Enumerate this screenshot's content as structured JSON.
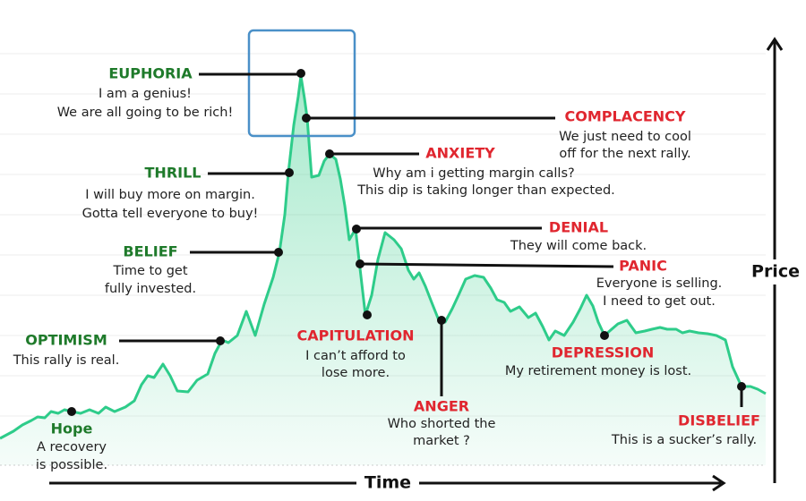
{
  "axes": {
    "x": "Time",
    "y": "Price"
  },
  "stages": [
    {
      "name": "Hope",
      "text": [
        "A recovery",
        "is possible."
      ]
    },
    {
      "name": "OPTIMISM",
      "text": [
        "This rally is real."
      ]
    },
    {
      "name": "BELIEF",
      "text": [
        "Time to get",
        "fully invested."
      ]
    },
    {
      "name": "THRILL",
      "text": [
        "I will buy more on margin.",
        "Gotta tell everyone to buy!"
      ]
    },
    {
      "name": "EUPHORIA",
      "text": [
        "I am a genius!",
        "We are all going to be rich!"
      ]
    },
    {
      "name": "COMPLACENCY",
      "text": [
        "We just need to cool",
        "off for the next rally."
      ]
    },
    {
      "name": "ANXIETY",
      "text": [
        "Why am i getting margin calls?",
        "This dip is taking longer than expected."
      ]
    },
    {
      "name": "DENIAL",
      "text": [
        "They will come back."
      ]
    },
    {
      "name": "PANIC",
      "text": [
        "Everyone is selling.",
        "I need to get out."
      ]
    },
    {
      "name": "CAPITULATION",
      "text": [
        "I can’t afford to",
        "lose more."
      ]
    },
    {
      "name": "ANGER",
      "text": [
        "Who shorted the",
        "market ?"
      ]
    },
    {
      "name": "DEPRESSION",
      "text": [
        "My retirement money is lost."
      ]
    },
    {
      "name": "DISBELIEF",
      "text": [
        "This is a sucker’s rally."
      ]
    }
  ]
}
